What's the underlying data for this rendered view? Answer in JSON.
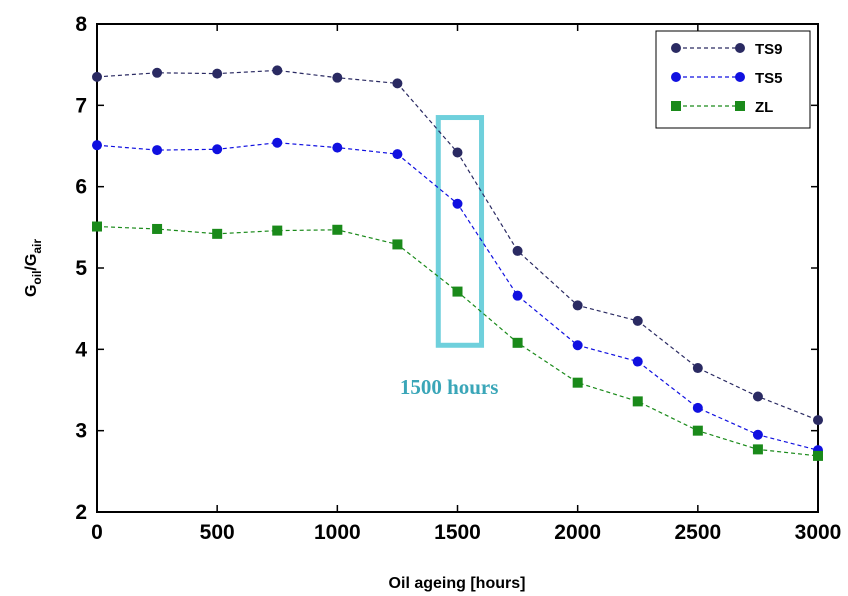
{
  "chart_data": {
    "type": "line",
    "xlabel": "Oil ageing [hours]",
    "ylabel": {
      "main": "G",
      "sub1": "oil",
      "sep": "/G",
      "sub2": "air"
    },
    "xlim": [
      0,
      3000
    ],
    "ylim": [
      2,
      8
    ],
    "xticks": [
      0,
      500,
      1000,
      1500,
      2000,
      2500,
      3000
    ],
    "yticks": [
      2,
      3,
      4,
      5,
      6,
      7,
      8
    ],
    "grid": false,
    "legend_position": "top-right",
    "x": [
      0,
      250,
      500,
      750,
      1000,
      1250,
      1500,
      1750,
      2000,
      2250,
      2500,
      2750,
      3000
    ],
    "series": [
      {
        "name": "TS9",
        "color": "#2a2a62",
        "marker": "circle",
        "values": [
          7.35,
          7.4,
          7.39,
          7.43,
          7.34,
          7.27,
          6.42,
          5.21,
          4.54,
          4.35,
          3.77,
          3.42,
          3.13
        ]
      },
      {
        "name": "TS5",
        "color": "#1010e0",
        "marker": "circle",
        "values": [
          6.51,
          6.45,
          6.46,
          6.54,
          6.48,
          6.4,
          5.79,
          4.66,
          4.05,
          3.85,
          3.28,
          2.95,
          2.76
        ]
      },
      {
        "name": "ZL",
        "color": "#1a8a1a",
        "marker": "square",
        "values": [
          5.51,
          5.48,
          5.42,
          5.46,
          5.47,
          5.29,
          4.71,
          4.08,
          3.59,
          3.36,
          3.0,
          2.77,
          2.69
        ]
      }
    ],
    "annotations": [
      {
        "text": "1500 hours",
        "color": "#3aa6b8",
        "box_color": "#6fd0dc",
        "box_x": [
          1420,
          1600
        ],
        "box_y": [
          4.05,
          6.85
        ],
        "text_x": 1260,
        "text_y": 3.45
      }
    ]
  }
}
